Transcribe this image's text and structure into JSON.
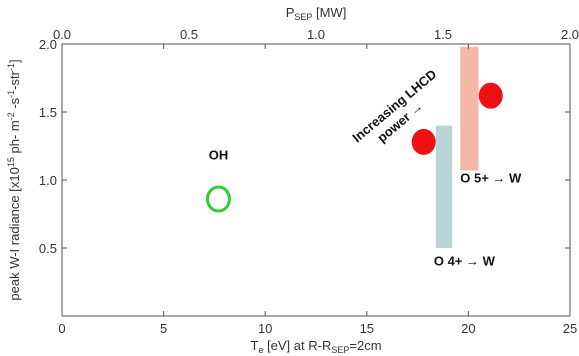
{
  "chart_data": {
    "type": "scatter",
    "title": "",
    "xlabel": {
      "base": "T",
      "sub": "e",
      "rest": " [eV]  at R-R",
      "sub2": "SEP",
      "tail": "=2cm"
    },
    "ylabel": {
      "main": "peak W-I radiance [x10",
      "sup": "15",
      "rest": " ph- m",
      "sup2": "-2",
      "mid": " -s",
      "sup3": "-1",
      "end": "-str",
      "sup4": "-1",
      "close": "]"
    },
    "x2label": {
      "base": "P",
      "sub": "SEP",
      "rest": " [MW]"
    },
    "xlim": [
      0,
      25
    ],
    "ylim": [
      0,
      2.0
    ],
    "x2lim": [
      0,
      2.0
    ],
    "xticks": [
      0,
      5,
      10,
      15,
      20,
      25
    ],
    "xtick_labels": [
      "0",
      "5",
      "10",
      "15",
      "20",
      "25"
    ],
    "yticks": [
      0.5,
      1.0,
      1.5,
      2.0
    ],
    "ytick_labels": [
      "0.5",
      "1.0",
      "1.5",
      "2.0"
    ],
    "x2ticks": [
      0,
      0.5,
      1.0,
      1.5,
      2.0
    ],
    "x2tick_labels": [
      "0.0",
      "0.5",
      "1.0",
      "1.5",
      "2.0"
    ],
    "grid": false,
    "series": [
      {
        "marker": "open-circle",
        "color": "#33cc33",
        "points": [
          {
            "x": 7.7,
            "y": 0.86
          }
        ]
      },
      {
        "marker": "filled-circle",
        "color": "#ee1111",
        "points": [
          {
            "x": 17.8,
            "y": 1.28
          },
          {
            "x": 21.1,
            "y": 1.62
          }
        ]
      }
    ],
    "ranges": [
      {
        "name": "O 4+ → W",
        "color": "#b9d4d4",
        "x": [
          18.4,
          19.2
        ],
        "y": [
          0.5,
          1.4
        ]
      },
      {
        "name": "O 5+ → W",
        "color": "#f5b8a8",
        "x": [
          19.6,
          20.5
        ],
        "y": [
          1.07,
          1.98
        ]
      }
    ],
    "annotations": [
      {
        "id": "oh",
        "text": "OH"
      },
      {
        "id": "lhcd1",
        "text": "Increasing LHCD"
      },
      {
        "id": "lhcd2",
        "text": "power →"
      },
      {
        "id": "o5",
        "text": "O 5+ → W"
      },
      {
        "id": "o4",
        "text": "O 4+ → W"
      }
    ]
  }
}
